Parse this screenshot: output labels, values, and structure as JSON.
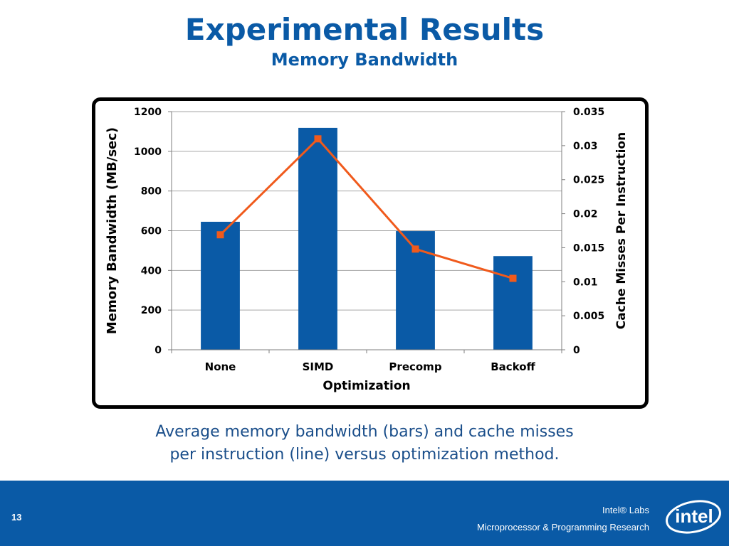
{
  "slide": {
    "title": "Experimental Results",
    "subtitle": "Memory Bandwidth",
    "caption_line1": "Average memory bandwidth (bars) and cache misses",
    "caption_line2": "per instruction (line) versus optimization method."
  },
  "footer": {
    "page_number": "13",
    "line1": "Intel® Labs",
    "line2": "Microprocessor & Programming Research",
    "logo_text": "intel"
  },
  "colors": {
    "title": "#0a5aa6",
    "bar": "#0a5aa6",
    "line": "#f05a1c",
    "footer_bg": "#0a5aa6"
  },
  "chart_data": {
    "type": "bar",
    "categories": [
      "None",
      "SIMD",
      "Precomp",
      "Backoff"
    ],
    "series": [
      {
        "values": [
          645,
          1118,
          598,
          472
        ],
        "axis": "left",
        "kind": "bar"
      },
      {
        "values": [
          0.0169,
          0.031,
          0.0148,
          0.0105
        ],
        "axis": "right",
        "kind": "line",
        "marker": "square"
      }
    ],
    "xlabel": "Optimization",
    "ylabel": "Memory Bandwidth (MB/sec)",
    "y2label": "Cache Misses Per Instruction",
    "ylim": [
      0,
      1200
    ],
    "y2lim": [
      0,
      0.035
    ],
    "yticks": [
      "0",
      "200",
      "400",
      "600",
      "800",
      "1000",
      "1200"
    ],
    "y2ticks": [
      "0",
      "0.005",
      "0.01",
      "0.015",
      "0.02",
      "0.025",
      "0.03",
      "0.035"
    ],
    "grid": true,
    "legend": "none"
  }
}
